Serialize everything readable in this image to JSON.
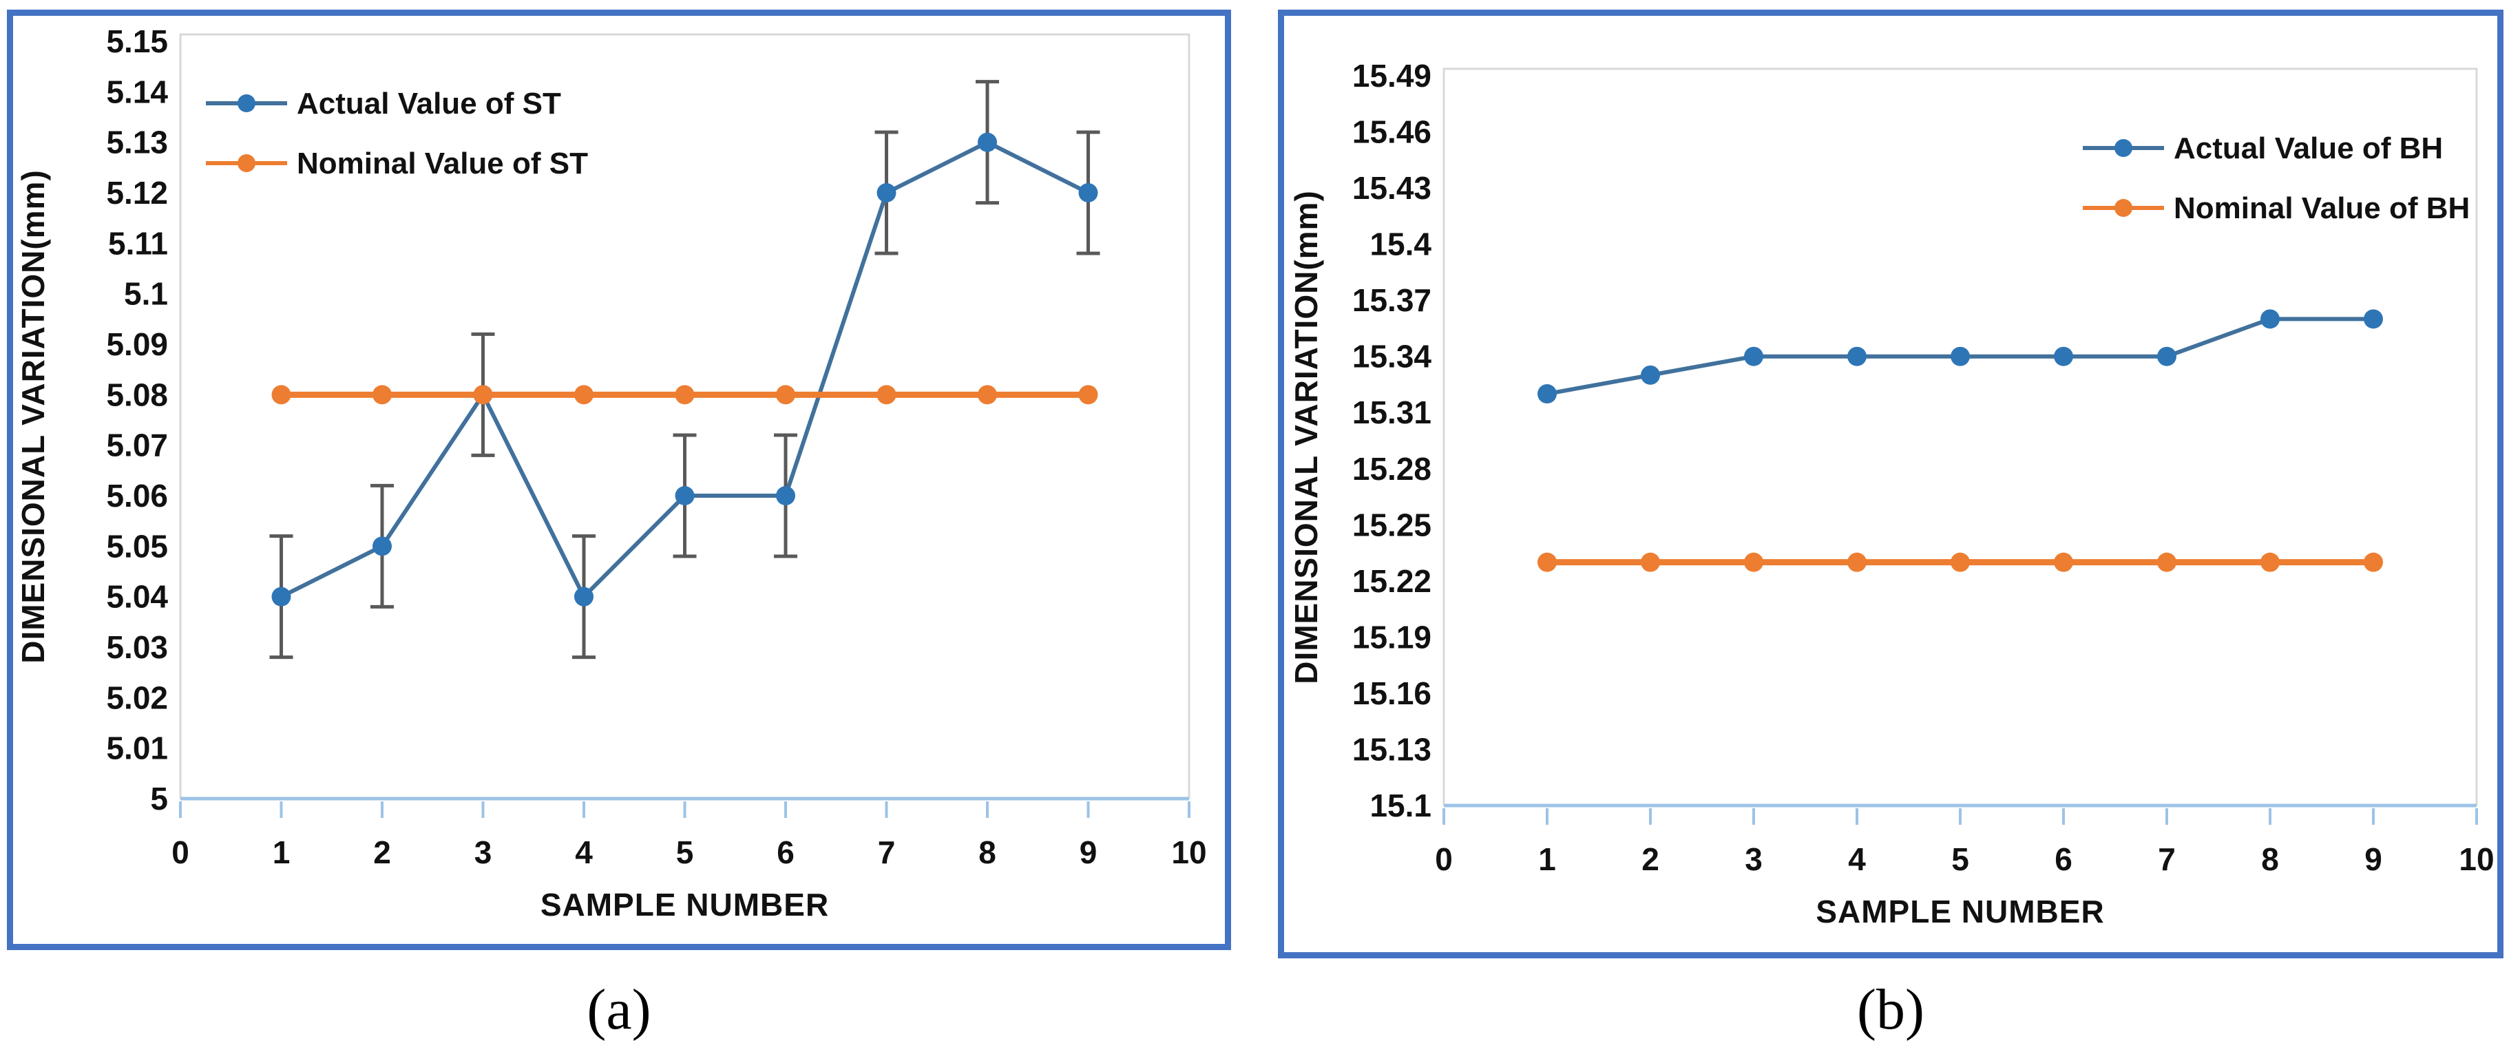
{
  "colors": {
    "panel_border": "#4472C4",
    "axis_line": "#9DC3E6",
    "plot_border": "#D9D9D9",
    "error_bar": "#595959",
    "actual_line": "#41719C",
    "actual_marker": "#2E75B6",
    "nominal_line": "#ED7D31",
    "nominal_marker": "#ED7D31",
    "text": "#111111"
  },
  "chart_data": [
    {
      "id": "a",
      "type": "line",
      "caption": "(a)",
      "xlabel": "SAMPLE NUMBER",
      "ylabel": "DIMENSIONAL VARIATION(mm)",
      "x": [
        1,
        2,
        3,
        4,
        5,
        6,
        7,
        8,
        9
      ],
      "xlim": [
        0,
        10
      ],
      "x_ticks": [
        0,
        1,
        2,
        3,
        4,
        5,
        6,
        7,
        8,
        9,
        10
      ],
      "ylim": [
        5,
        5.15
      ],
      "y_tick_step": 0.01,
      "y_tick_labels": [
        "5",
        "5.01",
        "5.02",
        "5.03",
        "5.04",
        "5.05",
        "5.06",
        "5.07",
        "5.08",
        "5.09",
        "5.1",
        "5.11",
        "5.12",
        "5.13",
        "5.14",
        "5.15"
      ],
      "grid": false,
      "legend_position": "top-left",
      "series": [
        {
          "name": "Actual Value of ST",
          "color_key": "actual",
          "error": 0.012,
          "values": [
            5.04,
            5.05,
            5.08,
            5.04,
            5.06,
            5.06,
            5.12,
            5.13,
            5.12
          ]
        },
        {
          "name": "Nominal Value of ST",
          "color_key": "nominal",
          "error": 0,
          "values": [
            5.08,
            5.08,
            5.08,
            5.08,
            5.08,
            5.08,
            5.08,
            5.08,
            5.08
          ]
        }
      ]
    },
    {
      "id": "b",
      "type": "line",
      "caption": "(b)",
      "xlabel": "SAMPLE NUMBER",
      "ylabel": "DIMENSIONAL VARIATION(mm)",
      "x": [
        1,
        2,
        3,
        4,
        5,
        6,
        7,
        8,
        9
      ],
      "xlim": [
        0,
        10
      ],
      "x_ticks": [
        0,
        1,
        2,
        3,
        4,
        5,
        6,
        7,
        8,
        9,
        10
      ],
      "ylim": [
        15.1,
        15.49
      ],
      "y_tick_step": 0.03,
      "y_tick_labels": [
        "15.1",
        "15.13",
        "15.16",
        "15.19",
        "15.22",
        "15.25",
        "15.28",
        "15.31",
        "15.34",
        "15.37",
        "15.4",
        "15.43",
        "15.46",
        "15.49"
      ],
      "grid": false,
      "legend_position": "top-right",
      "series": [
        {
          "name": "Actual Value of BH",
          "color_key": "actual",
          "error": 0,
          "values": [
            15.32,
            15.33,
            15.34,
            15.34,
            15.34,
            15.34,
            15.34,
            15.36,
            15.36
          ]
        },
        {
          "name": "Nominal Value of BH",
          "color_key": "nominal",
          "error": 0,
          "values": [
            15.23,
            15.23,
            15.23,
            15.23,
            15.23,
            15.23,
            15.23,
            15.23,
            15.23
          ]
        }
      ]
    }
  ]
}
